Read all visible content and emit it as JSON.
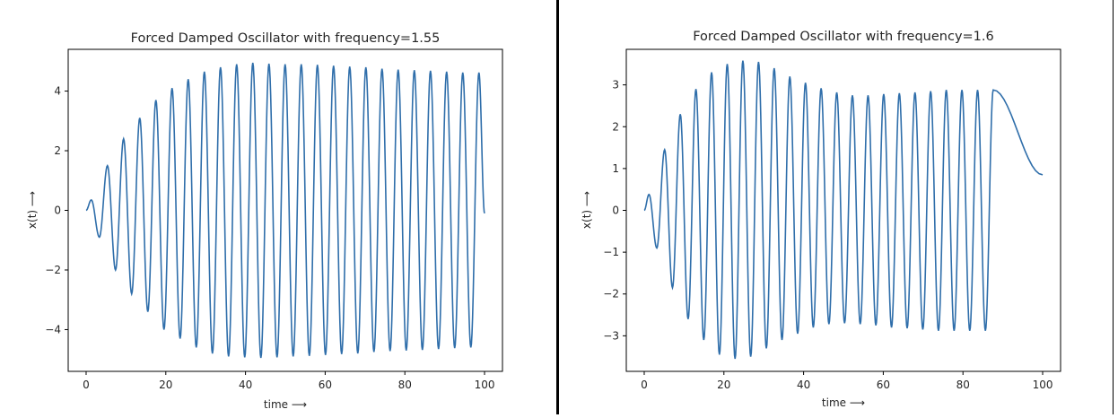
{
  "chart_data": [
    {
      "type": "line",
      "title": "Forced Damped Oscillator with frequency=1.55",
      "xlabel": "time ⟶",
      "ylabel": "x(t) ⟶",
      "xlim": [
        -4.5,
        104.5
      ],
      "ylim": [
        -5.4,
        5.4
      ],
      "xticks": [
        0,
        20,
        40,
        60,
        80,
        100
      ],
      "yticks": [
        -4,
        -2,
        0,
        2,
        4
      ],
      "xtick_labels": [
        "0",
        "20",
        "40",
        "60",
        "80",
        "100"
      ],
      "ytick_labels": [
        "−4",
        "−2",
        "0",
        "2",
        "4"
      ],
      "grid": false,
      "line_color": "#2f6eaa",
      "series": [
        {
          "x": [
            0,
            2.75,
            5.5,
            9.5,
            13.5,
            17.5,
            22,
            26,
            30,
            34,
            38,
            42,
            46,
            50,
            54,
            58,
            62,
            66,
            70,
            74,
            78,
            82,
            86,
            90,
            94,
            98,
            100
          ],
          "peaks_y": [
            0,
            0.35,
            1.5,
            2.4,
            3.1,
            3.7,
            4.1,
            4.4,
            4.65,
            4.8,
            4.9,
            4.95,
            4.92,
            4.9,
            4.9,
            4.88,
            4.85,
            4.82,
            4.8,
            4.75,
            4.72,
            4.7,
            4.68,
            4.65,
            4.62,
            4.62,
            -0.1
          ],
          "troughs_y": [
            -0.9,
            -2.0,
            -2.8,
            -3.4,
            -4.0,
            -4.3,
            -4.6,
            -4.8,
            -4.9,
            -4.93,
            -4.95,
            -4.93,
            -4.9,
            -4.88,
            -4.85,
            -4.82,
            -4.8,
            -4.75,
            -4.72,
            -4.7,
            -4.68,
            -4.65,
            -4.62,
            -4.6,
            -4.6
          ]
        }
      ]
    },
    {
      "type": "line",
      "title": "Forced Damped Oscillator with frequency=1.6",
      "xlabel": "time ⟶",
      "ylabel": "x(t) ⟶",
      "xlim": [
        -4.5,
        104.5
      ],
      "ylim": [
        -3.85,
        3.85
      ],
      "xticks": [
        0,
        20,
        40,
        60,
        80,
        100
      ],
      "yticks": [
        -3,
        -2,
        -1,
        0,
        1,
        2,
        3
      ],
      "xtick_labels": [
        "0",
        "20",
        "40",
        "60",
        "80",
        "100"
      ],
      "ytick_labels": [
        "−3",
        "−2",
        "−1",
        "0",
        "1",
        "2",
        "3"
      ],
      "grid": false,
      "line_color": "#2f6eaa",
      "series": [
        {
          "peaks_y": [
            0.38,
            1.45,
            2.3,
            2.9,
            3.3,
            3.5,
            3.58,
            3.55,
            3.4,
            3.2,
            3.05,
            2.92,
            2.82,
            2.75,
            2.75,
            2.78,
            2.8,
            2.82,
            2.85,
            2.88,
            2.88,
            2.88,
            2.88
          ],
          "troughs_y": [
            -0.9,
            -1.85,
            -2.6,
            -3.1,
            -3.45,
            -3.55,
            -3.5,
            -3.3,
            -3.1,
            -2.95,
            -2.8,
            -2.72,
            -2.7,
            -2.72,
            -2.75,
            -2.8,
            -2.82,
            -2.85,
            -2.88,
            -2.88,
            -2.88,
            -2.88
          ],
          "end_value": 0.85
        }
      ]
    }
  ]
}
